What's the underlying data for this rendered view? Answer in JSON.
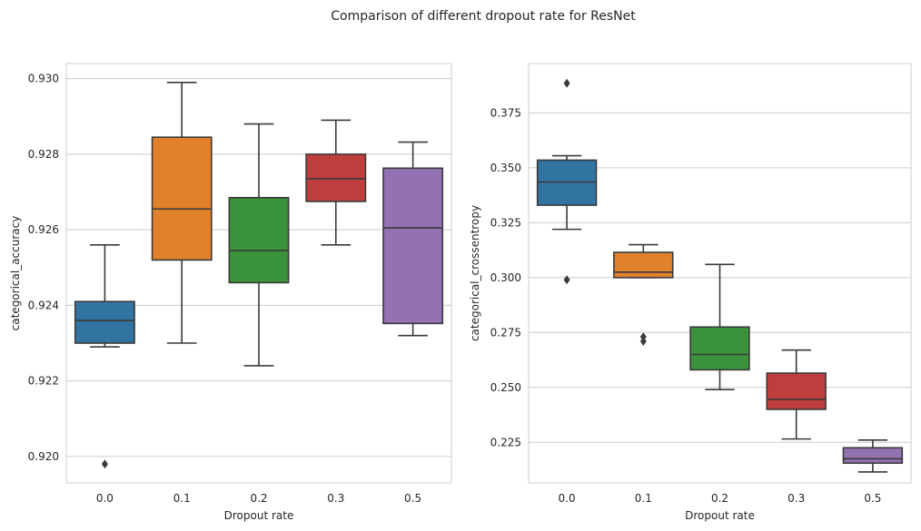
{
  "figure": {
    "suptitle": "Comparison of different dropout rate for ResNet"
  },
  "colors": {
    "0.0": "#3274a1",
    "0.1": "#e1812c",
    "0.2": "#3a923a",
    "0.3": "#c03d3e",
    "0.5": "#9372b2",
    "line": "#3a3a3a",
    "grid": "#cccccc"
  },
  "chart_data": [
    {
      "type": "box",
      "xlabel": "Dropout rate",
      "ylabel": "categorical_accuracy",
      "categories": [
        "0.0",
        "0.1",
        "0.2",
        "0.3",
        "0.5"
      ],
      "ylim": [
        0.9193,
        0.9304
      ],
      "yticks": [
        0.92,
        0.922,
        0.924,
        0.926,
        0.928,
        0.93
      ],
      "ytick_labels": [
        "0.920",
        "0.922",
        "0.924",
        "0.926",
        "0.928",
        "0.930"
      ],
      "grid": true,
      "boxes": [
        {
          "category": "0.0",
          "whisker_low": 0.9229,
          "q1": 0.923,
          "median": 0.9236,
          "q3": 0.9241,
          "whisker_high": 0.9256,
          "fliers": [
            0.9198
          ]
        },
        {
          "category": "0.1",
          "whisker_low": 0.923,
          "q1": 0.9252,
          "median": 0.92655,
          "q3": 0.92845,
          "whisker_high": 0.9299,
          "fliers": []
        },
        {
          "category": "0.2",
          "whisker_low": 0.9224,
          "q1": 0.9246,
          "median": 0.92545,
          "q3": 0.92685,
          "whisker_high": 0.9288,
          "fliers": []
        },
        {
          "category": "0.3",
          "whisker_low": 0.9256,
          "q1": 0.92675,
          "median": 0.92735,
          "q3": 0.928,
          "whisker_high": 0.9289,
          "fliers": []
        },
        {
          "category": "0.5",
          "whisker_low": 0.9232,
          "q1": 0.92352,
          "median": 0.92605,
          "q3": 0.92763,
          "whisker_high": 0.92832,
          "fliers": []
        }
      ]
    },
    {
      "type": "box",
      "xlabel": "Dropout rate",
      "ylabel": "categorical_crossentropy",
      "categories": [
        "0.0",
        "0.1",
        "0.2",
        "0.3",
        "0.5"
      ],
      "ylim": [
        0.2065,
        0.3975
      ],
      "yticks": [
        0.225,
        0.25,
        0.275,
        0.3,
        0.325,
        0.35,
        0.375
      ],
      "ytick_labels": [
        "0.225",
        "0.250",
        "0.275",
        "0.300",
        "0.325",
        "0.350",
        "0.375"
      ],
      "grid": true,
      "boxes": [
        {
          "category": "0.0",
          "whisker_low": 0.322,
          "q1": 0.333,
          "median": 0.3435,
          "q3": 0.3535,
          "whisker_high": 0.3555,
          "fliers": [
            0.299,
            0.3885
          ]
        },
        {
          "category": "0.1",
          "whisker_low": 0.3,
          "q1": 0.3,
          "median": 0.3025,
          "q3": 0.3115,
          "whisker_high": 0.315,
          "fliers": [
            0.271,
            0.273
          ]
        },
        {
          "category": "0.2",
          "whisker_low": 0.249,
          "q1": 0.258,
          "median": 0.265,
          "q3": 0.2775,
          "whisker_high": 0.306,
          "fliers": []
        },
        {
          "category": "0.3",
          "whisker_low": 0.2265,
          "q1": 0.24,
          "median": 0.2445,
          "q3": 0.2565,
          "whisker_high": 0.267,
          "fliers": []
        },
        {
          "category": "0.5",
          "whisker_low": 0.2115,
          "q1": 0.2155,
          "median": 0.2175,
          "q3": 0.2225,
          "whisker_high": 0.226,
          "fliers": []
        }
      ]
    }
  ]
}
